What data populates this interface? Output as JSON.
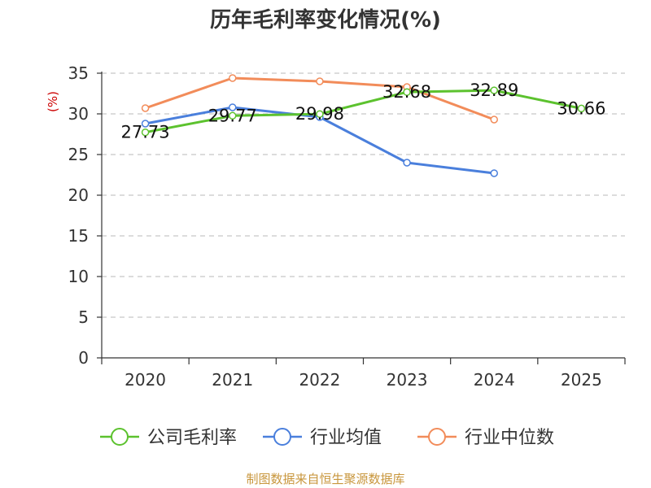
{
  "title": "历年毛利率变化情况(%)",
  "source": "制图数据来自恒生聚源数据库",
  "chart_data": {
    "type": "line",
    "title": "历年毛利率变化情况(%)",
    "ylabel": "(%)",
    "xlabel": "",
    "categories": [
      "2020",
      "2021",
      "2022",
      "2023",
      "2024",
      "2025"
    ],
    "ylim": [
      0,
      35
    ],
    "yticks": [
      0,
      5,
      10,
      15,
      20,
      25,
      30,
      35
    ],
    "grid": true,
    "legend_position": "bottom",
    "series": [
      {
        "name": "公司毛利率",
        "color": "#5cc22e",
        "values": [
          27.73,
          29.77,
          29.98,
          32.68,
          32.89,
          30.66
        ],
        "labels": [
          "27.73",
          "29.77",
          "29.98",
          "32.68",
          "32.89",
          "30.66"
        ]
      },
      {
        "name": "行业均值",
        "color": "#4a7fdc",
        "values": [
          28.8,
          30.8,
          29.6,
          24.0,
          22.7,
          null
        ],
        "labels": []
      },
      {
        "name": "行业中位数",
        "color": "#f28c5a",
        "values": [
          30.7,
          34.4,
          34.0,
          33.3,
          29.3,
          null
        ],
        "labels": []
      }
    ]
  }
}
